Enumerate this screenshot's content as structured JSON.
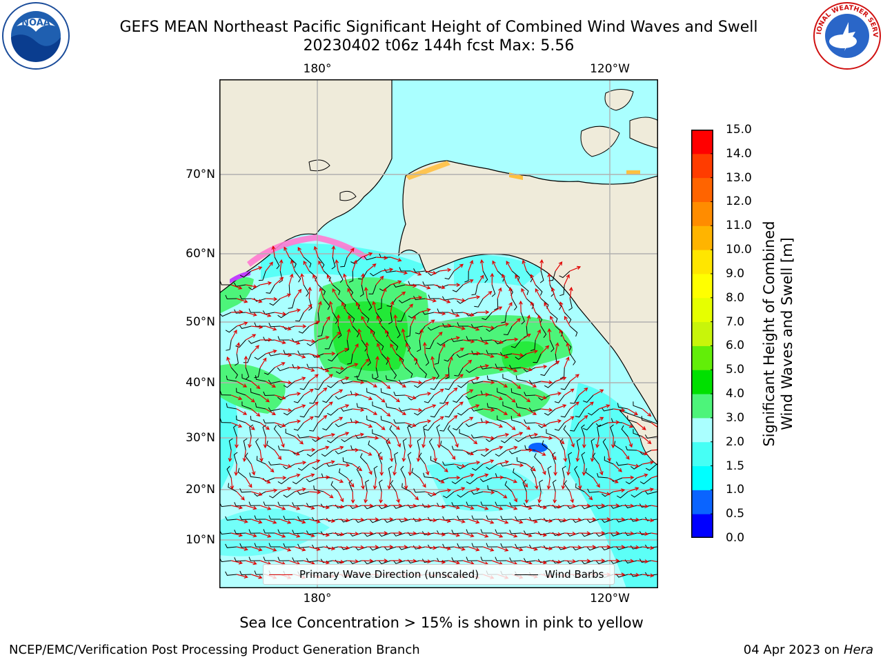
{
  "title": {
    "line1": "GEFS MEAN Northeast Pacific Significant Height of Combined Wind Waves and Swell",
    "line2": "20230402 t06z 144h fcst   Max: 5.56"
  },
  "logos": {
    "left": {
      "icon": "noaa-logo-icon",
      "text": "NOAA"
    },
    "right": {
      "icon": "nws-logo-icon",
      "text": "NATIONAL WEATHER SERVICE"
    }
  },
  "map": {
    "lon_ticks_top": [
      "180°",
      "120°W"
    ],
    "lon_ticks_bottom": [
      "180°",
      "120°W"
    ],
    "lat_ticks": [
      "70°N",
      "60°N",
      "50°N",
      "40°N",
      "30°N",
      "20°N",
      "10°N"
    ],
    "colors": {
      "land": "#efebda",
      "coast": "#000000",
      "grid": "#b0b0b0",
      "wave_direction": "#e00000",
      "wind_barb": "#000000"
    }
  },
  "colorbar": {
    "title_line1": "Significant Height of Combined",
    "title_line2": "Wind Waves and Swell [m]",
    "ticks": [
      "0.0",
      "0.5",
      "1.0",
      "1.5",
      "2.0",
      "3.0",
      "4.0",
      "5.0",
      "6.0",
      "7.0",
      "8.0",
      "9.0",
      "10.0",
      "11.0",
      "12.0",
      "13.0",
      "14.0",
      "15.0"
    ],
    "colors": [
      "#0000ff",
      "#0a64ff",
      "#00ffff",
      "#46fff5",
      "#aaffff",
      "#4df47a",
      "#00e000",
      "#62ee08",
      "#c8f50a",
      "#e6ff00",
      "#ffff00",
      "#ffe600",
      "#ffb400",
      "#ff8c00",
      "#ff6400",
      "#ff3c00",
      "#ff0000"
    ]
  },
  "legend": {
    "wave_label": "Primary Wave Direction (unscaled)",
    "wind_label": "Wind Barbs"
  },
  "note": "Sea Ice Concentration > 15% is shown in pink to yellow",
  "footer": {
    "left": "NCEP/EMC/Verification Post Processing Product Generation Branch",
    "date": "04 Apr 2023 on",
    "machine": "Hera"
  }
}
